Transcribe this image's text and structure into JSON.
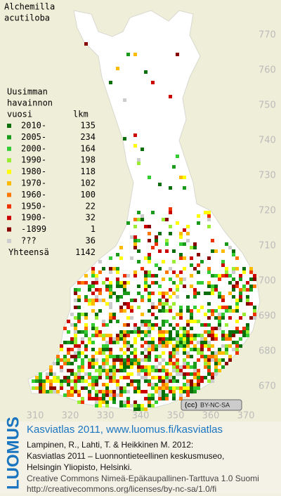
{
  "map": {
    "title": [
      "Alchemilla",
      "acutiloba"
    ],
    "legend": {
      "heading": [
        "Uusimman",
        "havainnon",
        "vuosi"
      ],
      "count_heading": "lkm",
      "entries": [
        {
          "label": "2010-",
          "count": 135,
          "color": "#0a6e0a"
        },
        {
          "label": "2005-",
          "count": 234,
          "color": "#1a9a1a"
        },
        {
          "label": "2000-",
          "count": 164,
          "color": "#33cc33"
        },
        {
          "label": "1990-",
          "count": 198,
          "color": "#99ee33"
        },
        {
          "label": "1980-",
          "count": 118,
          "color": "#ffff00"
        },
        {
          "label": "1970-",
          "count": 102,
          "color": "#ffbb00"
        },
        {
          "label": "1960-",
          "count": 100,
          "color": "#ff7700"
        },
        {
          "label": "1950-",
          "count": 22,
          "color": "#ee3300"
        },
        {
          "label": "1900-",
          "count": 32,
          "color": "#cc0000"
        },
        {
          "label": "-1899",
          "count": 1,
          "color": "#880000"
        },
        {
          "label": "???",
          "count": 36,
          "color": "#cccccc"
        }
      ],
      "total": {
        "label": "Yhteensä",
        "value": 1142
      }
    },
    "y_grid_labels": [
      770,
      760,
      750,
      740,
      730,
      720,
      710,
      700,
      690,
      680,
      670
    ],
    "x_grid_labels": [
      310,
      320,
      330,
      340,
      350,
      360,
      370
    ],
    "license_badge": "BY-NC-SA"
  },
  "footer": {
    "logo": "LUOMUS",
    "heading": "Kasviatlas 2011, www.luomus.fi/kasviatlas",
    "citation": [
      "Lampinen, R., Lahti, T. & Heikkinen M. 2012:",
      "Kasviatlas 2011 – Luonnontieteellinen keskusmuseo,",
      "Helsingin Yliopisto, Helsinki."
    ],
    "license": [
      "Creative Commons Nimeä-Epäkaupallinen-Tarttuva 1.0 Suomi",
      "http://creativecommons.org/licenses/by-nc-sa/1.0/fi"
    ]
  }
}
